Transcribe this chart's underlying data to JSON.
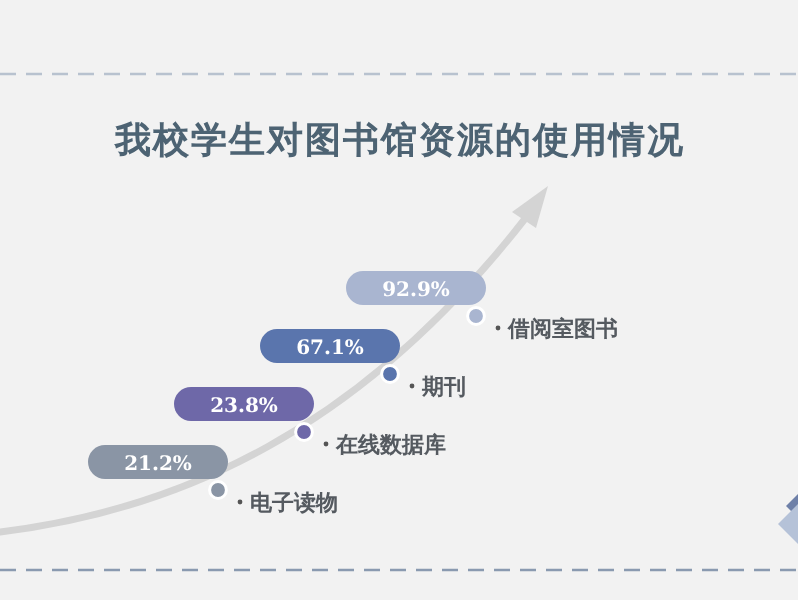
{
  "chart_data": {
    "type": "other",
    "title": "我校学生对图书馆资源的使用情况",
    "categories": [
      "电子读物",
      "在线数据库",
      "期刊",
      "借阅室图书"
    ],
    "values": [
      21.2,
      23.8,
      67.1,
      92.9
    ],
    "value_labels": [
      "21.2%",
      "23.8%",
      "67.1%",
      "92.9%"
    ],
    "colors": [
      "#8a95a5",
      "#6e68a8",
      "#5a75ad",
      "#a9b5d0"
    ]
  }
}
